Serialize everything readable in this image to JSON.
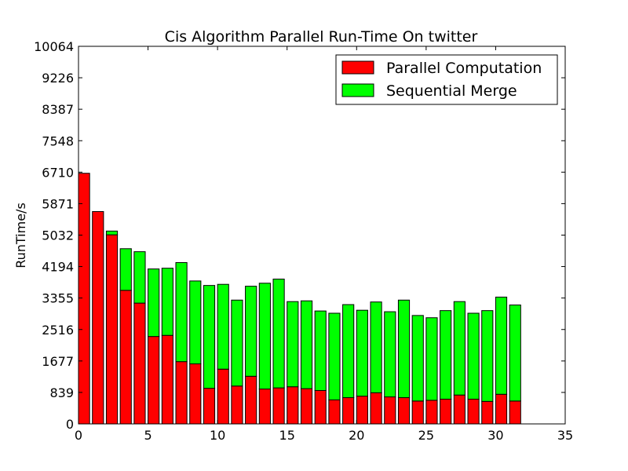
{
  "chart_data": {
    "type": "bar",
    "stacked": true,
    "title": "Cis Algorithm Parallel Run-Time On twitter",
    "xlabel": "",
    "ylabel": "RunTime/s",
    "xlim": [
      0,
      35
    ],
    "ylim": [
      0,
      10064
    ],
    "xticks": [
      "0",
      "5",
      "10",
      "15",
      "20",
      "25",
      "30",
      "35"
    ],
    "yticks": [
      "0",
      "839",
      "1677",
      "2516",
      "3355",
      "4194",
      "5032",
      "5871",
      "6710",
      "7548",
      "8387",
      "9226",
      "10064"
    ],
    "grid": false,
    "legend_position": "top-right",
    "bar_width": 0.8,
    "x": [
      0,
      1,
      2,
      3,
      4,
      5,
      6,
      7,
      8,
      9,
      10,
      11,
      12,
      13,
      14,
      15,
      16,
      17,
      18,
      19,
      20,
      21,
      22,
      23,
      24,
      25,
      26,
      27,
      28,
      29,
      30,
      31
    ],
    "series": [
      {
        "name": "Parallel Computation",
        "color": "#ff0000",
        "values": [
          6680,
          5660,
          5040,
          3560,
          3220,
          2330,
          2360,
          1660,
          1600,
          950,
          1460,
          1010,
          1270,
          930,
          960,
          990,
          940,
          890,
          640,
          700,
          740,
          830,
          720,
          700,
          610,
          630,
          660,
          770,
          660,
          600,
          790,
          610
        ]
      },
      {
        "name": "Sequential Merge",
        "color": "#00ff00",
        "values": [
          0,
          0,
          100,
          1110,
          1370,
          1800,
          1790,
          2640,
          2210,
          2740,
          2260,
          2290,
          2400,
          2820,
          2900,
          2270,
          2340,
          2120,
          2310,
          2480,
          2290,
          2420,
          2270,
          2600,
          2280,
          2200,
          2360,
          2490,
          2290,
          2420,
          2590,
          2560
        ]
      }
    ]
  }
}
